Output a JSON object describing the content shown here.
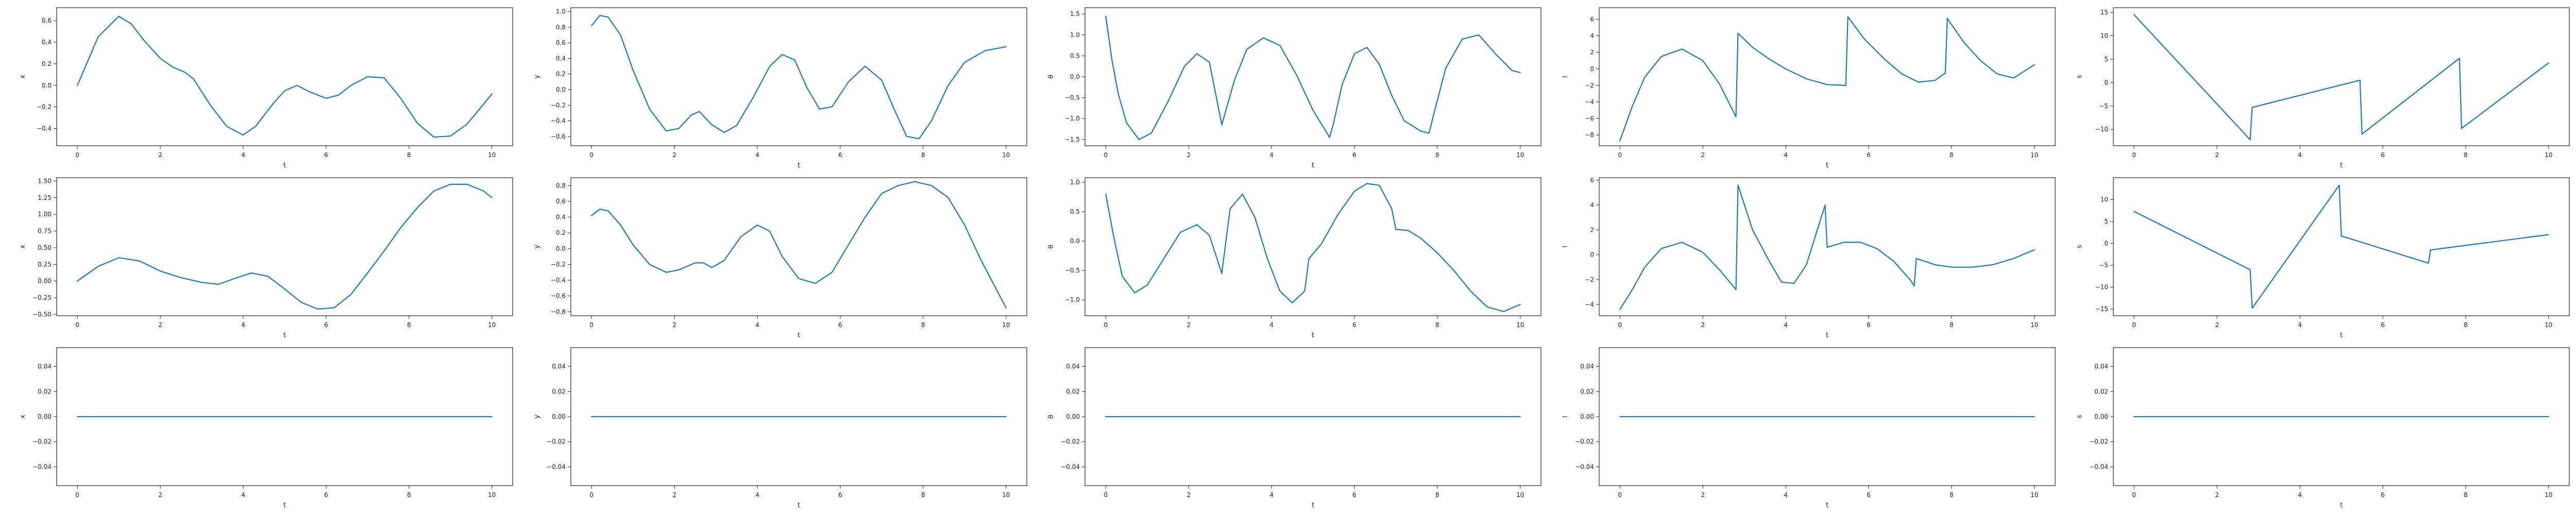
{
  "figure": {
    "line_color": "#1f77b4",
    "axis_color": "#222222",
    "background": "#ffffff"
  },
  "chart_data": [
    {
      "type": "line",
      "xlabel": "t",
      "ylabel": "x",
      "xlim": [
        -0.5,
        10.5
      ],
      "ylim": [
        -0.56,
        0.72
      ],
      "xticks": [
        0,
        2,
        4,
        6,
        8,
        10
      ],
      "yticks": [
        -0.4,
        -0.2,
        0.0,
        0.2,
        0.4,
        0.6
      ],
      "tick_labels_y": [
        "−0.4",
        "−0.2",
        "0.0",
        "0.2",
        "0.4",
        "0.6"
      ],
      "series": [
        {
          "x": [
            0,
            0.5,
            1.0,
            1.3,
            1.6,
            2.0,
            2.3,
            2.6,
            2.8,
            3.2,
            3.6,
            4.0,
            4.3,
            4.7,
            5.0,
            5.3,
            5.6,
            6.0,
            6.3,
            6.6,
            7.0,
            7.4,
            7.8,
            8.2,
            8.6,
            9.0,
            9.4,
            10.0
          ],
          "y": [
            0.0,
            0.45,
            0.64,
            0.57,
            0.42,
            0.25,
            0.17,
            0.12,
            0.06,
            -0.18,
            -0.38,
            -0.46,
            -0.38,
            -0.18,
            -0.05,
            0.0,
            -0.06,
            -0.12,
            -0.09,
            0.0,
            0.08,
            0.07,
            -0.12,
            -0.35,
            -0.48,
            -0.47,
            -0.36,
            -0.08
          ]
        }
      ]
    },
    {
      "type": "line",
      "xlabel": "t",
      "ylabel": "y",
      "xlim": [
        -0.5,
        10.5
      ],
      "ylim": [
        -0.72,
        1.05
      ],
      "xticks": [
        0,
        2,
        4,
        6,
        8,
        10
      ],
      "yticks": [
        -0.6,
        -0.4,
        -0.2,
        0.0,
        0.2,
        0.4,
        0.6,
        0.8,
        1.0
      ],
      "tick_labels_y": [
        "−0.6",
        "−0.4",
        "−0.2",
        "0.0",
        "0.2",
        "0.4",
        "0.6",
        "0.8",
        "1.0"
      ],
      "series": [
        {
          "x": [
            0,
            0.2,
            0.4,
            0.7,
            1.0,
            1.4,
            1.8,
            2.1,
            2.4,
            2.6,
            2.9,
            3.2,
            3.5,
            3.9,
            4.3,
            4.6,
            4.9,
            5.2,
            5.5,
            5.8,
            6.2,
            6.6,
            7.0,
            7.3,
            7.6,
            7.9,
            8.2,
            8.6,
            9.0,
            9.5,
            10.0
          ],
          "y": [
            0.82,
            0.95,
            0.93,
            0.7,
            0.25,
            -0.25,
            -0.53,
            -0.5,
            -0.33,
            -0.28,
            -0.45,
            -0.55,
            -0.46,
            -0.1,
            0.3,
            0.45,
            0.38,
            0.02,
            -0.25,
            -0.22,
            0.1,
            0.3,
            0.12,
            -0.25,
            -0.6,
            -0.63,
            -0.4,
            0.05,
            0.35,
            0.5,
            0.55
          ]
        }
      ]
    },
    {
      "type": "line",
      "xlabel": "t",
      "ylabel": "θ",
      "xlim": [
        -0.5,
        10.5
      ],
      "ylim": [
        -1.65,
        1.65
      ],
      "xticks": [
        0,
        2,
        4,
        6,
        8,
        10
      ],
      "yticks": [
        -1.5,
        -1.0,
        -0.5,
        0.0,
        0.5,
        1.0,
        1.5
      ],
      "tick_labels_y": [
        "−1.5",
        "−1.0",
        "−0.5",
        "0.0",
        "0.5",
        "1.0",
        "1.5"
      ],
      "series": [
        {
          "x": [
            0,
            0.15,
            0.3,
            0.5,
            0.8,
            1.1,
            1.5,
            1.9,
            2.2,
            2.5,
            2.8,
            3.1,
            3.4,
            3.8,
            4.2,
            4.6,
            5.0,
            5.4,
            5.5,
            5.7,
            6.0,
            6.3,
            6.6,
            6.9,
            7.2,
            7.6,
            7.8,
            7.9,
            8.2,
            8.6,
            9.0,
            9.4,
            9.8,
            10.0
          ],
          "y": [
            1.45,
            0.4,
            -0.4,
            -1.1,
            -1.5,
            -1.35,
            -0.6,
            0.25,
            0.55,
            0.35,
            -1.15,
            -0.1,
            0.65,
            0.93,
            0.75,
            0.05,
            -0.8,
            -1.45,
            -1.1,
            -0.2,
            0.55,
            0.7,
            0.3,
            -0.45,
            -1.05,
            -1.3,
            -1.35,
            -0.95,
            0.2,
            0.9,
            1.0,
            0.55,
            0.15,
            0.1
          ]
        }
      ]
    },
    {
      "type": "line",
      "xlabel": "t",
      "ylabel": "l",
      "xlim": [
        -0.5,
        10.5
      ],
      "ylim": [
        -9.3,
        7.4
      ],
      "xticks": [
        0,
        2,
        4,
        6,
        8,
        10
      ],
      "yticks": [
        -8,
        -6,
        -4,
        -2,
        0,
        2,
        4,
        6
      ],
      "tick_labels_y": [
        "−8",
        "−6",
        "−4",
        "−2",
        "0",
        "2",
        "4",
        "6"
      ],
      "series": [
        {
          "x": [
            0,
            0.3,
            0.6,
            1.0,
            1.5,
            2.0,
            2.4,
            2.8,
            2.85,
            3.2,
            3.6,
            4.0,
            4.5,
            5.0,
            5.45,
            5.5,
            5.9,
            6.4,
            6.8,
            7.2,
            7.6,
            7.85,
            7.9,
            8.3,
            8.7,
            9.1,
            9.5,
            10.0
          ],
          "y": [
            -8.7,
            -4.5,
            -1.0,
            1.5,
            2.4,
            1.0,
            -1.8,
            -5.8,
            4.3,
            2.6,
            1.2,
            0.0,
            -1.2,
            -1.9,
            -2.0,
            6.3,
            3.6,
            1.1,
            -0.6,
            -1.6,
            -1.4,
            -0.5,
            6.1,
            3.2,
            1.0,
            -0.6,
            -1.1,
            0.5
          ]
        }
      ]
    },
    {
      "type": "line",
      "xlabel": "t",
      "ylabel": "s",
      "xlim": [
        -0.5,
        10.5
      ],
      "ylim": [
        -13.5,
        16.0
      ],
      "xticks": [
        0,
        2,
        4,
        6,
        8,
        10
      ],
      "yticks": [
        -10,
        -5,
        0,
        5,
        10,
        15
      ],
      "tick_labels_y": [
        "−10",
        "−5",
        "0",
        "5",
        "10",
        "15"
      ],
      "series": [
        {
          "x": [
            0,
            2.8,
            2.85,
            5.45,
            5.5,
            7.85,
            7.9,
            10.0
          ],
          "y": [
            14.5,
            -12.2,
            -5.3,
            0.5,
            -11.0,
            5.2,
            -9.8,
            4.2
          ]
        }
      ]
    },
    {
      "type": "line",
      "xlabel": "t",
      "ylabel": "x",
      "xlim": [
        -0.5,
        10.5
      ],
      "ylim": [
        -0.52,
        1.55
      ],
      "xticks": [
        0,
        2,
        4,
        6,
        8,
        10
      ],
      "yticks": [
        -0.5,
        -0.25,
        0.0,
        0.25,
        0.5,
        0.75,
        1.0,
        1.25,
        1.5
      ],
      "tick_labels_y": [
        "−0.50",
        "−0.25",
        "0.00",
        "0.25",
        "0.50",
        "0.75",
        "1.00",
        "1.25",
        "1.50"
      ],
      "series": [
        {
          "x": [
            0,
            0.5,
            1.0,
            1.5,
            2.0,
            2.5,
            3.0,
            3.4,
            3.8,
            4.2,
            4.6,
            5.0,
            5.4,
            5.8,
            6.2,
            6.6,
            7.0,
            7.4,
            7.8,
            8.2,
            8.6,
            9.0,
            9.4,
            9.8,
            10.0
          ],
          "y": [
            0.0,
            0.22,
            0.35,
            0.3,
            0.15,
            0.05,
            -0.02,
            -0.05,
            0.04,
            0.12,
            0.07,
            -0.12,
            -0.32,
            -0.42,
            -0.4,
            -0.2,
            0.12,
            0.45,
            0.8,
            1.1,
            1.35,
            1.45,
            1.45,
            1.35,
            1.25
          ]
        }
      ]
    },
    {
      "type": "line",
      "xlabel": "t",
      "ylabel": "y",
      "xlim": [
        -0.5,
        10.5
      ],
      "ylim": [
        -0.85,
        0.9
      ],
      "xticks": [
        0,
        2,
        4,
        6,
        8,
        10
      ],
      "yticks": [
        -0.8,
        -0.6,
        -0.4,
        -0.2,
        0.0,
        0.2,
        0.4,
        0.6,
        0.8
      ],
      "tick_labels_y": [
        "−0.8",
        "−0.6",
        "−0.4",
        "−0.2",
        "0.0",
        "0.2",
        "0.4",
        "0.6",
        "0.8"
      ],
      "series": [
        {
          "x": [
            0,
            0.2,
            0.4,
            0.7,
            1.0,
            1.4,
            1.8,
            2.1,
            2.5,
            2.7,
            2.9,
            3.2,
            3.6,
            4.0,
            4.3,
            4.6,
            5.0,
            5.4,
            5.8,
            6.2,
            6.6,
            7.0,
            7.4,
            7.8,
            8.2,
            8.6,
            9.0,
            9.4,
            9.8,
            10.0
          ],
          "y": [
            0.42,
            0.5,
            0.48,
            0.3,
            0.05,
            -0.2,
            -0.3,
            -0.27,
            -0.18,
            -0.18,
            -0.24,
            -0.15,
            0.15,
            0.3,
            0.22,
            -0.1,
            -0.38,
            -0.44,
            -0.3,
            0.05,
            0.4,
            0.7,
            0.8,
            0.85,
            0.8,
            0.65,
            0.3,
            -0.15,
            -0.55,
            -0.75
          ]
        }
      ]
    },
    {
      "type": "line",
      "xlabel": "t",
      "ylabel": "θ",
      "xlim": [
        -0.5,
        10.5
      ],
      "ylim": [
        -1.27,
        1.08
      ],
      "xticks": [
        0,
        2,
        4,
        6,
        8,
        10
      ],
      "yticks": [
        -1.0,
        -0.5,
        0.0,
        0.5,
        1.0
      ],
      "tick_labels_y": [
        "−1.0",
        "−0.5",
        "0.0",
        "0.5",
        "1.0"
      ],
      "series": [
        {
          "x": [
            0,
            0.2,
            0.4,
            0.7,
            1.0,
            1.4,
            1.8,
            2.2,
            2.5,
            2.8,
            3.0,
            3.3,
            3.6,
            3.9,
            4.2,
            4.5,
            4.8,
            4.9,
            5.2,
            5.6,
            6.0,
            6.3,
            6.6,
            6.9,
            7.0,
            7.3,
            7.6,
            8.0,
            8.4,
            8.8,
            9.2,
            9.6,
            10.0
          ],
          "y": [
            0.8,
            0.05,
            -0.6,
            -0.88,
            -0.75,
            -0.3,
            0.15,
            0.28,
            0.1,
            -0.55,
            0.55,
            0.8,
            0.4,
            -0.3,
            -0.85,
            -1.05,
            -0.85,
            -0.3,
            -0.05,
            0.45,
            0.85,
            0.98,
            0.95,
            0.55,
            0.2,
            0.18,
            0.05,
            -0.2,
            -0.5,
            -0.85,
            -1.12,
            -1.2,
            -1.08
          ]
        }
      ]
    },
    {
      "type": "line",
      "xlabel": "t",
      "ylabel": "l",
      "xlim": [
        -0.5,
        10.5
      ],
      "ylim": [
        -4.9,
        6.2
      ],
      "xticks": [
        0,
        2,
        4,
        6,
        8,
        10
      ],
      "yticks": [
        -4,
        -2,
        0,
        2,
        4,
        6
      ],
      "tick_labels_y": [
        "−4",
        "−2",
        "0",
        "2",
        "4",
        "6"
      ],
      "series": [
        {
          "x": [
            0,
            0.3,
            0.6,
            1.0,
            1.5,
            2.0,
            2.4,
            2.8,
            2.85,
            3.2,
            3.6,
            3.9,
            4.2,
            4.5,
            4.8,
            4.95,
            5.0,
            5.4,
            5.8,
            6.2,
            6.6,
            7.0,
            7.1,
            7.15,
            7.6,
            8.0,
            8.5,
            9.0,
            9.5,
            10.0
          ],
          "y": [
            -4.4,
            -2.8,
            -1.0,
            0.5,
            1.0,
            0.2,
            -1.2,
            -2.8,
            5.6,
            2.0,
            -0.5,
            -2.2,
            -2.3,
            -0.8,
            2.4,
            4.0,
            0.6,
            1.0,
            1.0,
            0.5,
            -0.5,
            -2.0,
            -2.5,
            -0.3,
            -0.8,
            -1.0,
            -1.0,
            -0.8,
            -0.3,
            0.4
          ]
        }
      ]
    },
    {
      "type": "line",
      "xlabel": "t",
      "ylabel": "s",
      "xlim": [
        -0.5,
        10.5
      ],
      "ylim": [
        -16.5,
        15.0
      ],
      "xticks": [
        0,
        2,
        4,
        6,
        8,
        10
      ],
      "yticks": [
        -15,
        -10,
        -5,
        0,
        5,
        10
      ],
      "tick_labels_y": [
        "−15",
        "−10",
        "−5",
        "0",
        "5",
        "10"
      ],
      "series": [
        {
          "x": [
            0,
            2.8,
            2.85,
            4.95,
            5.0,
            7.1,
            7.15,
            10.0
          ],
          "y": [
            7.3,
            -6.0,
            -14.8,
            13.3,
            1.7,
            -4.5,
            -1.5,
            2.0
          ]
        }
      ]
    },
    {
      "type": "line",
      "xlabel": "t",
      "ylabel": "x",
      "xlim": [
        -0.5,
        10.5
      ],
      "ylim": [
        -0.055,
        0.055
      ],
      "xticks": [
        0,
        2,
        4,
        6,
        8,
        10
      ],
      "yticks": [
        -0.04,
        -0.02,
        0.0,
        0.02,
        0.04
      ],
      "tick_labels_y": [
        "−0.04",
        "−0.02",
        "0.00",
        "0.02",
        "0.04"
      ],
      "series": [
        {
          "x": [
            0,
            10
          ],
          "y": [
            0,
            0
          ]
        }
      ]
    },
    {
      "type": "line",
      "xlabel": "t",
      "ylabel": "y",
      "xlim": [
        -0.5,
        10.5
      ],
      "ylim": [
        -0.055,
        0.055
      ],
      "xticks": [
        0,
        2,
        4,
        6,
        8,
        10
      ],
      "yticks": [
        -0.04,
        -0.02,
        0.0,
        0.02,
        0.04
      ],
      "tick_labels_y": [
        "−0.04",
        "−0.02",
        "0.00",
        "0.02",
        "0.04"
      ],
      "series": [
        {
          "x": [
            0,
            10
          ],
          "y": [
            0,
            0
          ]
        }
      ]
    },
    {
      "type": "line",
      "xlabel": "t",
      "ylabel": "θ",
      "xlim": [
        -0.5,
        10.5
      ],
      "ylim": [
        -0.055,
        0.055
      ],
      "xticks": [
        0,
        2,
        4,
        6,
        8,
        10
      ],
      "yticks": [
        -0.04,
        -0.02,
        0.0,
        0.02,
        0.04
      ],
      "tick_labels_y": [
        "−0.04",
        "−0.02",
        "0.00",
        "0.02",
        "0.04"
      ],
      "series": [
        {
          "x": [
            0,
            10
          ],
          "y": [
            0,
            0
          ]
        }
      ]
    },
    {
      "type": "line",
      "xlabel": "t",
      "ylabel": "l",
      "xlim": [
        -0.5,
        10.5
      ],
      "ylim": [
        -0.055,
        0.055
      ],
      "xticks": [
        0,
        2,
        4,
        6,
        8,
        10
      ],
      "yticks": [
        -0.04,
        -0.02,
        0.0,
        0.02,
        0.04
      ],
      "tick_labels_y": [
        "−0.04",
        "−0.02",
        "0.00",
        "0.02",
        "0.04"
      ],
      "series": [
        {
          "x": [
            0,
            10
          ],
          "y": [
            0,
            0
          ]
        }
      ]
    },
    {
      "type": "line",
      "xlabel": "t",
      "ylabel": "s",
      "xlim": [
        -0.5,
        10.5
      ],
      "ylim": [
        -0.055,
        0.055
      ],
      "xticks": [
        0,
        2,
        4,
        6,
        8,
        10
      ],
      "yticks": [
        -0.04,
        -0.02,
        0.0,
        0.02,
        0.04
      ],
      "tick_labels_y": [
        "−0.04",
        "−0.02",
        "0.00",
        "0.02",
        "0.04"
      ],
      "series": [
        {
          "x": [
            0,
            10
          ],
          "y": [
            0,
            0
          ]
        }
      ]
    }
  ]
}
